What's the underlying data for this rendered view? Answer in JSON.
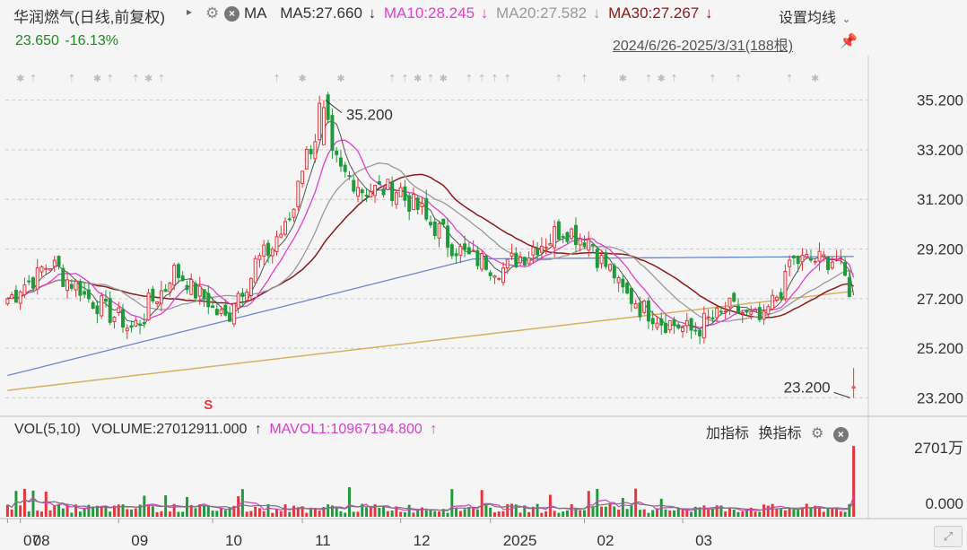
{
  "header": {
    "title": "华润燃气(日线,前复权)",
    "indicator": "MA",
    "ma5": "MA5:27.660",
    "ma10": "MA10:28.245",
    "ma20": "MA20:27.582",
    "ma30": "MA30:27.267",
    "down_arrow": "↓",
    "settings": "设置均线",
    "last_price": "23.650",
    "change": "-16.13%",
    "range": "2024/6/26-2025/3/31(188根)"
  },
  "volume_header": {
    "vol": "VOL(5,10)",
    "volume": "VOLUME:27012911.000",
    "up_arrow": "↑",
    "mavol1": "MAVOL1:10967194.800",
    "add_indicator": "加指标",
    "switch_indicator": "换指标"
  },
  "colors": {
    "up": "#e8333a",
    "down": "#1f9a3a",
    "ma5": "#555555",
    "ma10": "#e040d0",
    "ma20": "#999999",
    "ma30": "#8b1a1a",
    "ma60": "#6688cc",
    "ma120": "#d8b060",
    "mavol1": "#d63fc9",
    "grid": "#cccccc",
    "bg": "#f5f5f5"
  },
  "icons": [
    "gear-icon",
    "close-icon",
    "pin-icon",
    "chevron-down-icon",
    "triangle-right-icon"
  ],
  "chart_data": [
    {
      "type": "candlestick",
      "ylim": [
        22.6,
        36.2
      ],
      "yticks": [
        35.2,
        33.2,
        31.2,
        29.2,
        27.2,
        25.2,
        23.2
      ],
      "ytick_labels": [
        "35.200",
        "33.200",
        "31.200",
        "29.200",
        "27.200",
        "25.200",
        "23.200"
      ],
      "x_labels": [
        "07",
        "08",
        "09",
        "10",
        "11",
        "12",
        "2025",
        "02",
        "03"
      ],
      "annotations": [
        {
          "text": "35.200",
          "kind": "high"
        },
        {
          "text": "23.200",
          "kind": "low"
        }
      ],
      "signal_marker": "S",
      "anchors": {
        "2024-06-26": 27.2,
        "2024-07-10": 28.6,
        "2024-07-25": 27.0,
        "2024-08-06": 26.0,
        "2024-08-20": 28.3,
        "2024-09-05": 26.4,
        "2024-09-15": 28.5,
        "2024-09-25": 30.0,
        "2024-10-02": 33.0,
        "2024-10-08": 35.2,
        "2024-10-10": 32.8,
        "2024-10-20": 31.6,
        "2024-11-01": 31.6,
        "2024-11-12": 30.2,
        "2024-11-22": 29.0,
        "2024-12-05": 28.4,
        "2024-12-15": 29.2,
        "2024-12-25": 30.0,
        "2025-01-02": 29.6,
        "2025-01-15": 27.3,
        "2025-01-25": 26.4,
        "2025-02-05": 25.9,
        "2025-02-18": 26.8,
        "2025-03-01": 26.2,
        "2025-03-10": 28.7,
        "2025-03-25": 28.8,
        "2025-03-28": 27.6,
        "2025-03-31": 23.65
      },
      "last_candle": {
        "open": 23.6,
        "high": 24.4,
        "low": 23.2,
        "close": 23.65
      }
    },
    {
      "type": "bar",
      "name": "volume",
      "ytick_labels": [
        "2701万",
        "0.000"
      ],
      "ylim": [
        0,
        27012911
      ],
      "last_volume": 27012911
    }
  ]
}
